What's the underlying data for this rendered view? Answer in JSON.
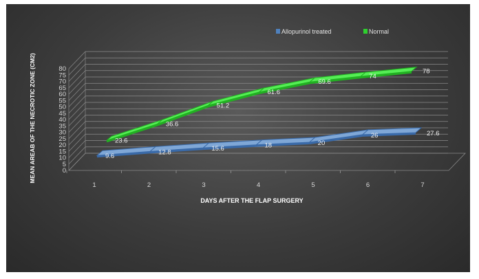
{
  "chart_data": {
    "type": "line",
    "categories": [
      "1",
      "2",
      "3",
      "4",
      "5",
      "6",
      "7"
    ],
    "series": [
      {
        "name": "Allopurinol treated",
        "values": [
          9.6,
          12.8,
          15.6,
          18,
          20,
          26,
          27.6
        ],
        "color": "#4f81bd"
      },
      {
        "name": "Normal",
        "values": [
          23.6,
          36.6,
          51.2,
          61.6,
          69.6,
          74,
          78
        ],
        "color": "#2ed02e"
      }
    ],
    "data_labels": {
      "allopurinol": [
        "9.6",
        "12.8",
        "15.6",
        "18",
        "20",
        "26",
        "27.6"
      ],
      "normal": [
        "23.6",
        "36.6",
        "51.2",
        "61.6",
        "69.6",
        "74",
        "78"
      ]
    },
    "y_ticks": [
      "0",
      "5",
      "10",
      "15",
      "20",
      "25",
      "30",
      "35",
      "40",
      "45",
      "50",
      "55",
      "60",
      "65",
      "70",
      "75",
      "80"
    ],
    "xlabel": "DAYS AFTER THE FLAP SURGERY",
    "ylabel": "MEAN AREAB OF THE NECROTIC ZONE (CM2)",
    "ylim": [
      0,
      80
    ],
    "grid": true,
    "legend": "top-right",
    "three_d": true
  }
}
